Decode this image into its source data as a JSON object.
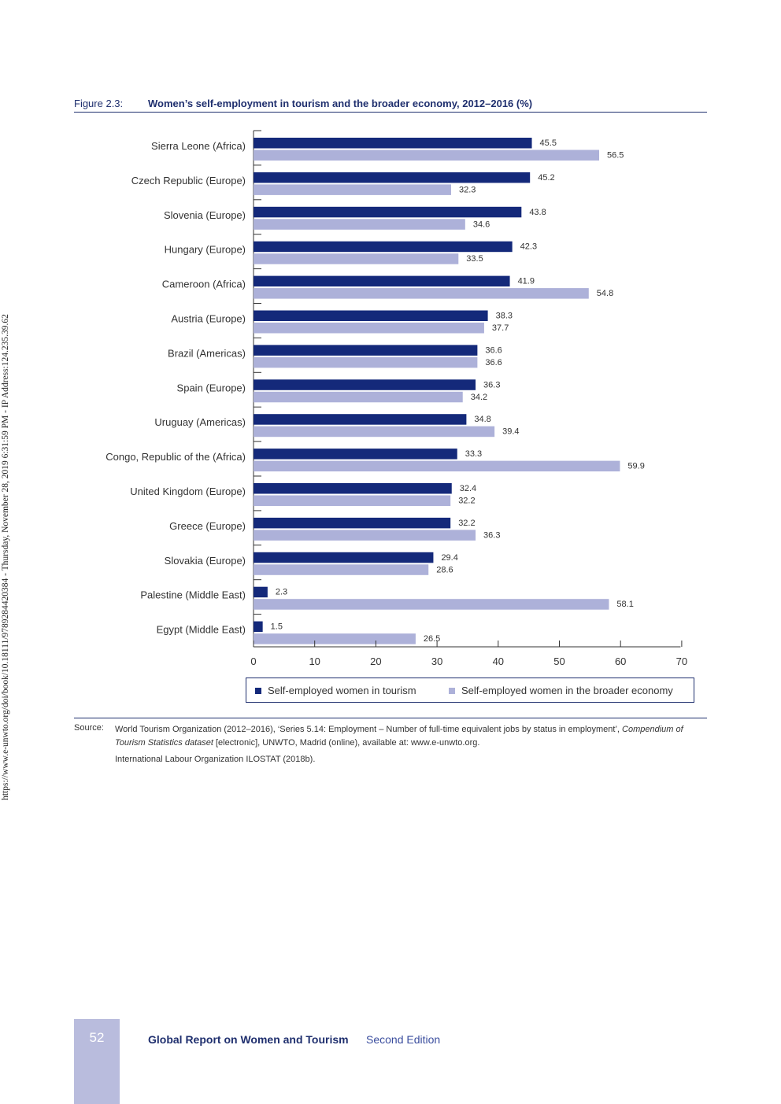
{
  "side_note": "https://www.e-unwto.org/doi/book/10.18111/9789284420384 - Thursday, November 28, 2019 6:31:59 PM - IP Address:124.235.39.62",
  "figure": {
    "number": "Figure 2.3:",
    "title": "Women’s self-employment in tourism and the broader economy, 2012–2016 (%)"
  },
  "colors": {
    "tourism": "#14297a",
    "broader": "#adb1d9",
    "accent": "#1f2f6e"
  },
  "chart_data": {
    "type": "bar",
    "orientation": "horizontal",
    "categories": [
      "Sierra Leone (Africa)",
      "Czech Republic (Europe)",
      "Slovenia (Europe)",
      "Hungary (Europe)",
      "Cameroon (Africa)",
      "Austria (Europe)",
      "Brazil (Americas)",
      "Spain (Europe)",
      "Uruguay (Americas)",
      "Congo, Republic of the (Africa)",
      "United Kingdom (Europe)",
      "Greece (Europe)",
      "Slovakia (Europe)",
      "Palestine (Middle East)",
      "Egypt (Middle East)"
    ],
    "series": [
      {
        "name": "Self-employed women in tourism",
        "values": [
          45.5,
          45.2,
          43.8,
          42.3,
          41.9,
          38.3,
          36.6,
          36.3,
          34.8,
          33.3,
          32.4,
          32.2,
          29.4,
          2.3,
          1.5
        ]
      },
      {
        "name": "Self-employed women in the broader economy",
        "values": [
          56.5,
          32.3,
          34.6,
          33.5,
          54.8,
          37.7,
          36.6,
          34.2,
          39.4,
          59.9,
          32.2,
          36.3,
          28.6,
          58.1,
          26.5
        ]
      }
    ],
    "xlim": [
      0,
      70
    ],
    "xticks": [
      0,
      10,
      20,
      30,
      40,
      50,
      60,
      70
    ],
    "grid": false,
    "legend_position": "bottom"
  },
  "legend": {
    "tourism": "Self-employed women in tourism",
    "broader": "Self-employed women in the broader economy"
  },
  "source": {
    "label": "Source:",
    "line1_pre": "World Tourism Organization (2012–2016), ‘Series 5.14: Employment – Number of full-time equivalent jobs by status in employment’, ",
    "line1_italic": "Compendium of Tourism Statistics dataset",
    "line1_post": " [electronic], UNWTO, Madrid (online), available at: www.e-unwto.org.",
    "line2": "International Labour Organization ILOSTAT (2018b)."
  },
  "footer": {
    "page_number": "52",
    "title": "Global Report on Women and Tourism",
    "edition": "Second Edition"
  }
}
